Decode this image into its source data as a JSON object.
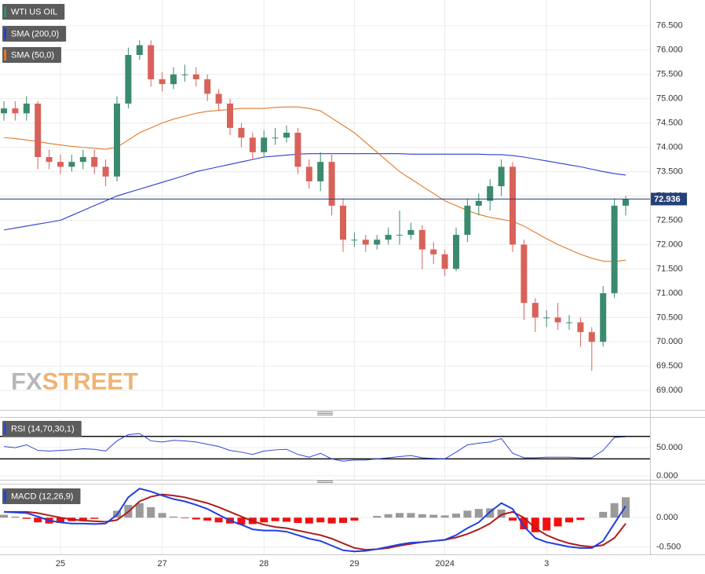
{
  "chart_data": [
    {
      "type": "candlestick",
      "title": "WTI US OIL",
      "watermark": [
        "FX",
        "STREET"
      ],
      "categories": [
        null,
        null,
        null,
        null,
        null,
        "25",
        null,
        null,
        null,
        null,
        null,
        null,
        null,
        null,
        "27",
        null,
        null,
        null,
        null,
        null,
        null,
        null,
        null,
        "28",
        null,
        null,
        null,
        null,
        null,
        null,
        null,
        "29",
        null,
        null,
        null,
        null,
        null,
        null,
        null,
        "2024",
        null,
        null,
        null,
        null,
        null,
        null,
        null,
        null,
        "3",
        null,
        null,
        null,
        null,
        null,
        null,
        null
      ],
      "open": [
        74.7,
        74.8,
        74.7,
        74.9,
        73.8,
        73.7,
        73.6,
        73.7,
        73.8,
        73.6,
        73.4,
        74.9,
        75.9,
        76.1,
        75.4,
        75.3,
        75.5,
        75.5,
        75.4,
        75.1,
        74.9,
        74.4,
        74.2,
        73.9,
        74.2,
        74.2,
        74.3,
        73.6,
        73.3,
        73.7,
        72.8,
        72.1,
        72.1,
        72.0,
        72.1,
        72.2,
        72.2,
        72.3,
        71.9,
        71.8,
        71.5,
        72.2,
        72.8,
        72.9,
        73.2,
        73.6,
        72.0,
        70.8,
        70.5,
        70.5,
        70.4,
        70.4,
        70.2,
        70.0,
        71.0,
        72.8
      ],
      "high": [
        74.95,
        74.95,
        75.05,
        74.95,
        73.95,
        73.85,
        73.85,
        73.95,
        73.95,
        73.75,
        75.05,
        76.05,
        76.2,
        76.2,
        75.55,
        75.65,
        75.7,
        75.65,
        75.5,
        75.2,
        75.0,
        74.5,
        74.3,
        74.35,
        74.4,
        74.45,
        74.4,
        73.75,
        73.9,
        73.85,
        72.95,
        72.25,
        72.2,
        72.2,
        72.35,
        72.7,
        72.45,
        72.4,
        72.05,
        71.9,
        72.35,
        72.95,
        73.05,
        73.35,
        73.75,
        73.7,
        72.1,
        70.9,
        70.65,
        70.8,
        70.55,
        70.5,
        70.3,
        71.15,
        72.95,
        73.0
      ],
      "low": [
        74.55,
        74.55,
        74.55,
        73.55,
        73.55,
        73.45,
        73.5,
        73.55,
        73.45,
        73.2,
        73.3,
        74.8,
        75.8,
        75.25,
        75.15,
        75.2,
        75.35,
        75.25,
        74.95,
        74.75,
        74.25,
        74.0,
        73.75,
        73.8,
        74.05,
        74.1,
        73.45,
        73.15,
        73.1,
        72.6,
        71.85,
        71.95,
        71.85,
        71.9,
        72.0,
        72.0,
        72.1,
        71.5,
        71.6,
        71.35,
        71.45,
        72.05,
        72.6,
        72.7,
        73.0,
        71.85,
        70.45,
        70.2,
        70.3,
        70.25,
        70.25,
        69.9,
        69.4,
        69.9,
        70.9,
        72.6
      ],
      "close": [
        74.8,
        74.7,
        74.9,
        73.8,
        73.7,
        73.6,
        73.7,
        73.8,
        73.6,
        73.4,
        74.9,
        75.9,
        76.1,
        75.4,
        75.3,
        75.5,
        75.5,
        75.4,
        75.1,
        74.9,
        74.4,
        74.2,
        73.9,
        74.2,
        74.2,
        74.3,
        73.6,
        73.3,
        73.7,
        72.8,
        72.1,
        72.1,
        72.0,
        72.1,
        72.2,
        72.2,
        72.3,
        71.9,
        71.8,
        71.5,
        72.2,
        72.8,
        72.9,
        73.2,
        73.6,
        72.0,
        70.8,
        70.5,
        70.5,
        70.4,
        70.4,
        70.2,
        70.0,
        71.0,
        72.8,
        72.936
      ],
      "up_color": "#3b8a6e",
      "down_color": "#d8625a",
      "series": [
        {
          "name": "SMA (200,0)",
          "color": "#2a3cd0",
          "values": [
            72.3,
            72.34,
            72.38,
            72.42,
            72.46,
            72.5,
            72.6,
            72.7,
            72.8,
            72.9,
            73.0,
            73.07,
            73.14,
            73.21,
            73.28,
            73.35,
            73.42,
            73.5,
            73.55,
            73.6,
            73.65,
            73.7,
            73.75,
            73.8,
            73.82,
            73.84,
            73.86,
            73.87,
            73.87,
            73.87,
            73.87,
            73.87,
            73.87,
            73.87,
            73.87,
            73.87,
            73.86,
            73.86,
            73.86,
            73.86,
            73.86,
            73.86,
            73.86,
            73.85,
            73.85,
            73.83,
            73.8,
            73.76,
            73.72,
            73.68,
            73.64,
            73.6,
            73.55,
            73.5,
            73.46,
            73.43
          ]
        },
        {
          "name": "SMA (50,0)",
          "color": "#e0782a",
          "values": [
            74.2,
            74.18,
            74.15,
            74.12,
            74.08,
            74.05,
            74.02,
            74.0,
            73.98,
            73.96,
            74.0,
            74.15,
            74.3,
            74.4,
            74.5,
            74.58,
            74.64,
            74.7,
            74.74,
            74.76,
            74.78,
            74.8,
            74.8,
            74.8,
            74.82,
            74.83,
            74.83,
            74.8,
            74.75,
            74.6,
            74.45,
            74.3,
            74.1,
            73.9,
            73.7,
            73.5,
            73.35,
            73.2,
            73.05,
            72.9,
            72.8,
            72.7,
            72.62,
            72.56,
            72.52,
            72.48,
            72.38,
            72.25,
            72.12,
            72.0,
            71.9,
            71.8,
            71.72,
            71.66,
            71.65,
            71.68
          ]
        }
      ],
      "last_price": 72.936,
      "last_price_color": "#25407a",
      "ylim": [
        68.6,
        77.03
      ],
      "yticks": [
        {
          "value": 69.0,
          "label": "69.000"
        },
        {
          "value": 69.5,
          "label": "69.500"
        },
        {
          "value": 70.0,
          "label": "70.000"
        },
        {
          "value": 70.5,
          "label": "70.500"
        },
        {
          "value": 71.0,
          "label": "71.000"
        },
        {
          "value": 71.5,
          "label": "71.500"
        },
        {
          "value": 72.0,
          "label": "72.000"
        },
        {
          "value": 72.5,
          "label": "72.500"
        },
        {
          "value": 73.0,
          "label": "73.000"
        },
        {
          "value": 73.5,
          "label": "73.500"
        },
        {
          "value": 74.0,
          "label": "74.000"
        },
        {
          "value": 74.5,
          "label": "74.500"
        },
        {
          "value": 75.0,
          "label": "75.000"
        },
        {
          "value": 75.5,
          "label": "75.500"
        },
        {
          "value": 76.0,
          "label": "76.000"
        },
        {
          "value": 76.5,
          "label": "76.500"
        }
      ],
      "grid": true
    },
    {
      "type": "line",
      "title": "RSI (14,70,30,1)",
      "color": "#3046d6",
      "levels": [
        70,
        30
      ],
      "values": [
        52,
        50,
        55,
        45,
        44,
        45,
        46,
        48,
        47,
        44,
        62,
        73,
        75,
        62,
        60,
        63,
        62,
        60,
        56,
        52,
        45,
        42,
        38,
        44,
        46,
        47,
        38,
        33,
        40,
        30,
        26,
        28,
        28,
        30,
        32,
        34,
        36,
        32,
        31,
        30,
        42,
        55,
        58,
        60,
        66,
        40,
        32,
        32,
        33,
        33,
        33,
        32,
        32,
        45,
        68,
        69
      ],
      "ylim": [
        -7,
        103
      ],
      "yticks": [
        {
          "value": 50,
          "label": "50.000"
        },
        {
          "value": 0,
          "label": "0.000"
        }
      ]
    },
    {
      "type": "macd",
      "title": "MACD (12,26,9)",
      "macd": {
        "color": "#1f3fe0",
        "values": [
          0.1,
          0.09,
          0.08,
          0.02,
          -0.05,
          -0.08,
          -0.1,
          -0.1,
          -0.11,
          -0.1,
          0.05,
          0.35,
          0.5,
          0.45,
          0.38,
          0.32,
          0.28,
          0.22,
          0.15,
          0.05,
          -0.05,
          -0.12,
          -0.2,
          -0.22,
          -0.22,
          -0.24,
          -0.3,
          -0.36,
          -0.4,
          -0.48,
          -0.56,
          -0.58,
          -0.57,
          -0.54,
          -0.5,
          -0.46,
          -0.43,
          -0.42,
          -0.4,
          -0.38,
          -0.3,
          -0.18,
          -0.08,
          0.1,
          0.25,
          0.15,
          -0.15,
          -0.35,
          -0.42,
          -0.46,
          -0.5,
          -0.52,
          -0.52,
          -0.4,
          -0.1,
          0.2
        ]
      },
      "signal": {
        "color": "#b01c1c",
        "values": [
          0.1,
          0.1,
          0.1,
          0.08,
          0.04,
          0.0,
          -0.03,
          -0.05,
          -0.06,
          -0.07,
          -0.04,
          0.1,
          0.28,
          0.36,
          0.4,
          0.38,
          0.35,
          0.3,
          0.25,
          0.18,
          0.1,
          0.02,
          -0.06,
          -0.12,
          -0.16,
          -0.18,
          -0.22,
          -0.26,
          -0.3,
          -0.36,
          -0.44,
          -0.52,
          -0.55,
          -0.54,
          -0.52,
          -0.48,
          -0.45,
          -0.42,
          -0.4,
          -0.38,
          -0.34,
          -0.28,
          -0.2,
          -0.1,
          0.05,
          0.1,
          0.0,
          -0.18,
          -0.3,
          -0.38,
          -0.44,
          -0.48,
          -0.5,
          -0.47,
          -0.35,
          -0.1
        ]
      },
      "histogram": {
        "up_color": "#9a9a9a",
        "down_color": "#f01010",
        "values": [
          0.05,
          0.02,
          -0.02,
          -0.08,
          -0.1,
          -0.09,
          -0.06,
          -0.04,
          -0.02,
          0.0,
          0.12,
          0.22,
          0.25,
          0.18,
          0.08,
          0.02,
          -0.01,
          -0.03,
          -0.05,
          -0.08,
          -0.1,
          -0.12,
          -0.11,
          -0.08,
          -0.06,
          -0.07,
          -0.09,
          -0.1,
          -0.08,
          -0.1,
          -0.09,
          -0.05,
          0.0,
          0.03,
          0.06,
          0.08,
          0.08,
          0.06,
          0.05,
          0.04,
          0.07,
          0.12,
          0.15,
          0.16,
          0.14,
          -0.05,
          -0.2,
          -0.25,
          -0.22,
          -0.15,
          -0.08,
          -0.04,
          0.0,
          0.1,
          0.25,
          0.35
        ]
      },
      "ylim": [
        -0.63,
        0.57
      ],
      "yticks": [
        {
          "value": 0,
          "label": "0.000"
        },
        {
          "value": -0.5,
          "label": "-0.500"
        }
      ]
    }
  ]
}
